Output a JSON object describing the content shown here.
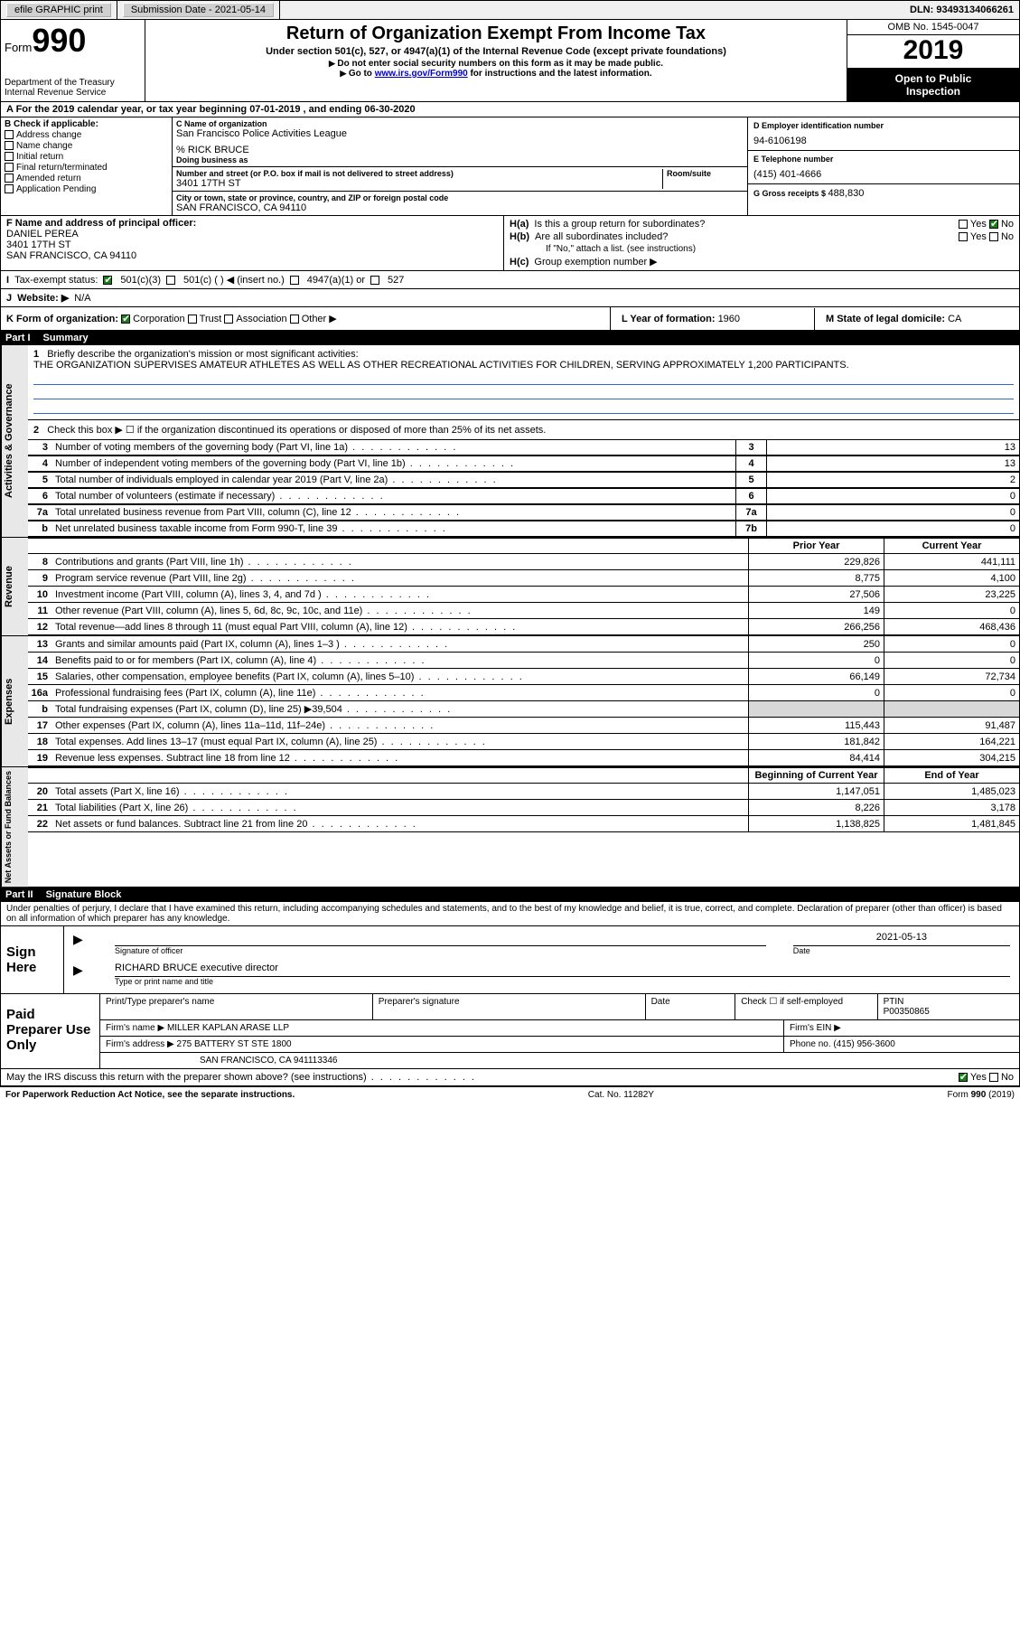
{
  "topbar": {
    "efile": "efile GRAPHIC print",
    "submission": "Submission Date - 2021-05-14",
    "dln": "DLN: 93493134066261"
  },
  "header": {
    "form_prefix": "Form",
    "form_number": "990",
    "dept1": "Department of the Treasury",
    "dept2": "Internal Revenue Service",
    "title": "Return of Organization Exempt From Income Tax",
    "subtitle": "Under section 501(c), 527, or 4947(a)(1) of the Internal Revenue Code (except private foundations)",
    "instr1": "Do not enter social security numbers on this form as it may be made public.",
    "instr2_pre": "Go to ",
    "instr2_link": "www.irs.gov/Form990",
    "instr2_post": " for instructions and the latest information.",
    "omb": "OMB No. 1545-0047",
    "year": "2019",
    "inspection1": "Open to Public",
    "inspection2": "Inspection"
  },
  "period": "A For the 2019 calendar year, or tax year beginning 07-01-2019   , and ending 06-30-2020",
  "checks": {
    "label_b": "B Check if applicable:",
    "address": "Address change",
    "name": "Name change",
    "initial": "Initial return",
    "final": "Final return/terminated",
    "amended": "Amended return",
    "app": "Application Pending"
  },
  "org": {
    "c_label": "C Name of organization",
    "name": "San Francisco Police Activities League",
    "care_of": "% RICK BRUCE",
    "dba_label": "Doing business as",
    "addr_label": "Number and street (or P.O. box if mail is not delivered to street address)",
    "room_label": "Room/suite",
    "addr": "3401 17TH ST",
    "city_label": "City or town, state or province, country, and ZIP or foreign postal code",
    "city": "SAN FRANCISCO, CA  94110"
  },
  "right": {
    "d_label": "D Employer identification number",
    "ein": "94-6106198",
    "e_label": "E Telephone number",
    "phone": "(415) 401-4666",
    "g_label": "G Gross receipts $ ",
    "g_val": "488,830"
  },
  "officer": {
    "f_label": "F Name and address of principal officer:",
    "name": "DANIEL PEREA",
    "addr1": "3401 17TH ST",
    "addr2": "SAN FRANCISCO, CA  94110",
    "ha_label": "H(a)",
    "ha_q": "Is this a group return for subordinates?",
    "hb_label": "H(b)",
    "hb_q": "Are all subordinates included?",
    "hb_note": "If \"No,\" attach a list. (see instructions)",
    "hc_label": "H(c)",
    "hc_q": "Group exemption number ▶",
    "yes": "Yes",
    "no": "No"
  },
  "status": {
    "i_label": "I",
    "label": "Tax-exempt status:",
    "opt1": "501(c)(3)",
    "opt2": "501(c) (   ) ◀ (insert no.)",
    "opt3": "4947(a)(1) or",
    "opt4": "527"
  },
  "website": {
    "j_label": "J",
    "label": "Website: ▶",
    "val": "N/A"
  },
  "korg": {
    "k_label": "K Form of organization:",
    "corp": "Corporation",
    "trust": "Trust",
    "assoc": "Association",
    "other": "Other ▶",
    "l_label": "L Year of formation: ",
    "l_val": "1960",
    "m_label": "M State of legal domicile: ",
    "m_val": "CA"
  },
  "part1": {
    "label": "Part I",
    "title": "Summary"
  },
  "gov": {
    "vert": "Activities & Governance",
    "l1_pre": "1",
    "l1": "Briefly describe the organization's mission or most significant activities:",
    "mission": "THE ORGANIZATION SUPERVISES AMATEUR ATHLETES AS WELL AS OTHER RECREATIONAL ACTIVITIES FOR CHILDREN, SERVING APPROXIMATELY 1,200 PARTICIPANTS.",
    "l2": "Check this box ▶ ☐  if the organization discontinued its operations or disposed of more than 25% of its net assets.",
    "rows": [
      {
        "n": "3",
        "d": "Number of voting members of the governing body (Part VI, line 1a)",
        "b": "3",
        "v": "13"
      },
      {
        "n": "4",
        "d": "Number of independent voting members of the governing body (Part VI, line 1b)",
        "b": "4",
        "v": "13"
      },
      {
        "n": "5",
        "d": "Total number of individuals employed in calendar year 2019 (Part V, line 2a)",
        "b": "5",
        "v": "2"
      },
      {
        "n": "6",
        "d": "Total number of volunteers (estimate if necessary)",
        "b": "6",
        "v": "0"
      },
      {
        "n": "7a",
        "d": "Total unrelated business revenue from Part VIII, column (C), line 12",
        "b": "7a",
        "v": "0"
      },
      {
        "n": "b",
        "d": "Net unrelated business taxable income from Form 990-T, line 39",
        "b": "7b",
        "v": "0"
      }
    ]
  },
  "rev": {
    "vert": "Revenue",
    "hdr_prior": "Prior Year",
    "hdr_current": "Current Year",
    "rows": [
      {
        "n": "8",
        "d": "Contributions and grants (Part VIII, line 1h)",
        "p": "229,826",
        "c": "441,111"
      },
      {
        "n": "9",
        "d": "Program service revenue (Part VIII, line 2g)",
        "p": "8,775",
        "c": "4,100"
      },
      {
        "n": "10",
        "d": "Investment income (Part VIII, column (A), lines 3, 4, and 7d )",
        "p": "27,506",
        "c": "23,225"
      },
      {
        "n": "11",
        "d": "Other revenue (Part VIII, column (A), lines 5, 6d, 8c, 9c, 10c, and 11e)",
        "p": "149",
        "c": "0"
      },
      {
        "n": "12",
        "d": "Total revenue—add lines 8 through 11 (must equal Part VIII, column (A), line 12)",
        "p": "266,256",
        "c": "468,436"
      }
    ]
  },
  "exp": {
    "vert": "Expenses",
    "rows": [
      {
        "n": "13",
        "d": "Grants and similar amounts paid (Part IX, column (A), lines 1–3 )",
        "p": "250",
        "c": "0"
      },
      {
        "n": "14",
        "d": "Benefits paid to or for members (Part IX, column (A), line 4)",
        "p": "0",
        "c": "0"
      },
      {
        "n": "15",
        "d": "Salaries, other compensation, employee benefits (Part IX, column (A), lines 5–10)",
        "p": "66,149",
        "c": "72,734"
      },
      {
        "n": "16a",
        "d": "Professional fundraising fees (Part IX, column (A), line 11e)",
        "p": "0",
        "c": "0"
      },
      {
        "n": "b",
        "d": "Total fundraising expenses (Part IX, column (D), line 25) ▶39,504",
        "p": "",
        "c": "",
        "shaded": true
      },
      {
        "n": "17",
        "d": "Other expenses (Part IX, column (A), lines 11a–11d, 11f–24e)",
        "p": "115,443",
        "c": "91,487"
      },
      {
        "n": "18",
        "d": "Total expenses. Add lines 13–17 (must equal Part IX, column (A), line 25)",
        "p": "181,842",
        "c": "164,221"
      },
      {
        "n": "19",
        "d": "Revenue less expenses. Subtract line 18 from line 12",
        "p": "84,414",
        "c": "304,215"
      }
    ]
  },
  "net": {
    "vert": "Net Assets or Fund Balances",
    "hdr_begin": "Beginning of Current Year",
    "hdr_end": "End of Year",
    "rows": [
      {
        "n": "20",
        "d": "Total assets (Part X, line 16)",
        "p": "1,147,051",
        "c": "1,485,023"
      },
      {
        "n": "21",
        "d": "Total liabilities (Part X, line 26)",
        "p": "8,226",
        "c": "3,178"
      },
      {
        "n": "22",
        "d": "Net assets or fund balances. Subtract line 21 from line 20",
        "p": "1,138,825",
        "c": "1,481,845"
      }
    ]
  },
  "part2": {
    "label": "Part II",
    "title": "Signature Block"
  },
  "penalty": "Under penalties of perjury, I declare that I have examined this return, including accompanying schedules and statements, and to the best of my knowledge and belief, it is true, correct, and complete. Declaration of preparer (other than officer) is based on all information of which preparer has any knowledge.",
  "sign": {
    "side": "Sign Here",
    "sig_label": "Signature of officer",
    "date_label": "Date",
    "date_val": "2021-05-13",
    "name": "RICHARD BRUCE  executive director",
    "name_label": "Type or print name and title"
  },
  "prep": {
    "side": "Paid Preparer Use Only",
    "h1": "Print/Type preparer's name",
    "h2": "Preparer's signature",
    "h3": "Date",
    "h4_pre": "Check ☐ if self-employed",
    "h5": "PTIN",
    "ptin": "P00350865",
    "firm_label": "Firm's name    ▶",
    "firm": "MILLER KAPLAN ARASE LLP",
    "ein_label": "Firm's EIN ▶",
    "addr_label": "Firm's address ▶",
    "addr1": "275 BATTERY ST STE 1800",
    "addr2": "SAN FRANCISCO, CA  941113346",
    "phone_label": "Phone no. ",
    "phone": "(415) 956-3600"
  },
  "discuss": {
    "q": "May the IRS discuss this return with the preparer shown above? (see instructions)",
    "yes": "Yes",
    "no": "No"
  },
  "footer": {
    "left": "For Paperwork Reduction Act Notice, see the separate instructions.",
    "mid": "Cat. No. 11282Y",
    "right_pre": "Form ",
    "right_form": "990",
    "right_post": " (2019)"
  },
  "colors": {
    "black": "#000000",
    "link": "#0000cc",
    "shaded": "#d8d8d8",
    "line_blue": "#3366cc",
    "check_green": "#1a7f1a"
  }
}
